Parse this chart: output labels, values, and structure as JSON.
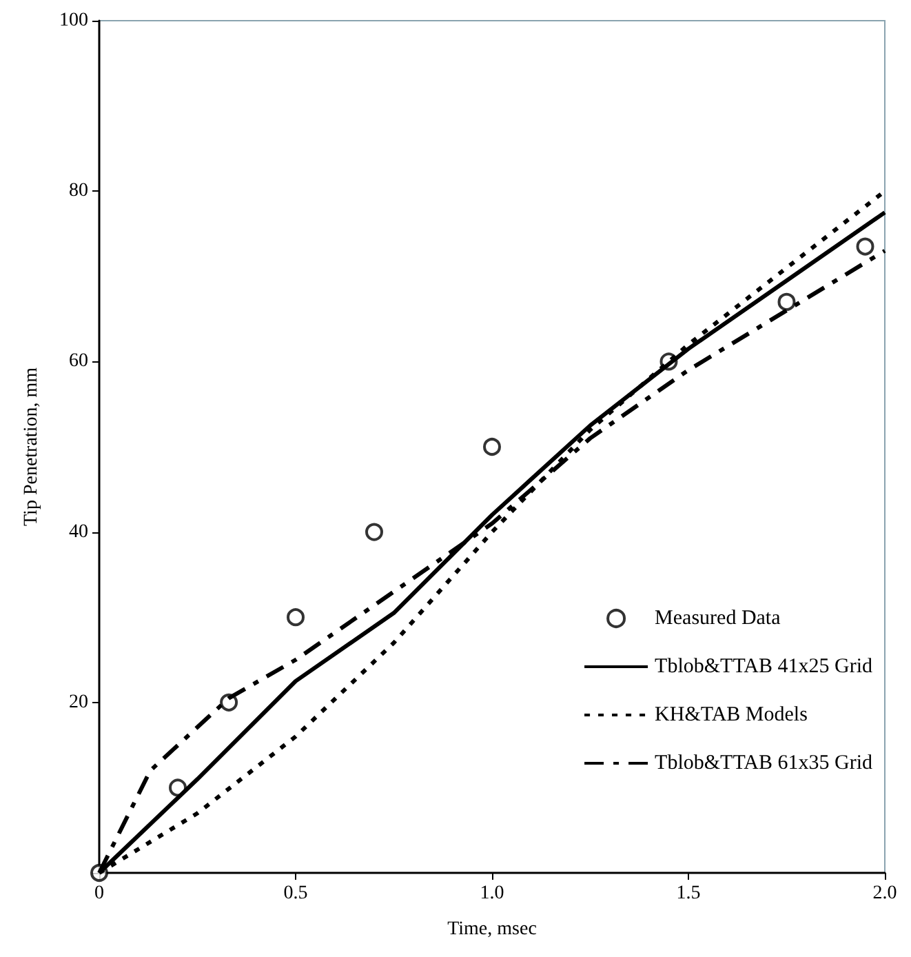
{
  "chart_data": {
    "type": "line",
    "xlabel": "Time, msec",
    "ylabel": "Tip Penetration, mm",
    "xlim": [
      0,
      2.0
    ],
    "xticks": [
      0,
      0.5,
      {
        "value": 1.0,
        "label": "1.0"
      },
      1.5,
      {
        "value": 2.0,
        "label": "2.0"
      }
    ],
    "ylim": [
      0,
      100
    ],
    "yticks": [
      {
        "value": 0,
        "label": null
      },
      20,
      40,
      60,
      80,
      100
    ],
    "grid": false,
    "legend": "bottom right",
    "series": [
      {
        "name": "Measured Data",
        "type": "scatter",
        "marker": "circle",
        "color": "#000000",
        "x": [
          0,
          0.2,
          0.33,
          0.5,
          0.7,
          1.0,
          1.45,
          1.75,
          1.95
        ],
        "values": [
          0,
          10,
          20,
          30,
          40,
          50,
          60,
          67,
          73.5
        ]
      },
      {
        "name": "Tblob&TTAB 41x25 Grid",
        "marker": "none",
        "line_style": "solid",
        "color": "#000000",
        "x": [
          0,
          0.25,
          0.5,
          0.75,
          1.0,
          1.25,
          1.5,
          1.75,
          2.0
        ],
        "values": [
          0,
          11,
          22.5,
          30.5,
          42,
          52.5,
          61.5,
          69.5,
          77.5
        ]
      },
      {
        "name": "KH&TAB Models",
        "marker": "none",
        "line_style": "dotted",
        "color": "#000000",
        "x": [
          0,
          0.25,
          0.5,
          0.75,
          1.0,
          1.25,
          1.5,
          1.75,
          2.0
        ],
        "values": [
          0,
          7,
          16,
          27,
          40,
          52,
          62,
          71,
          80
        ]
      },
      {
        "name": "Tblob&TTAB 61x35 Grid",
        "marker": "none",
        "line_style": "dashed",
        "color": "#000000",
        "x": [
          0,
          0.13,
          0.33,
          0.5,
          0.75,
          1.0,
          1.25,
          1.5,
          1.75,
          2.0
        ],
        "values": [
          0,
          12,
          20.5,
          25,
          33,
          41,
          51,
          59,
          66,
          73
        ]
      }
    ]
  }
}
